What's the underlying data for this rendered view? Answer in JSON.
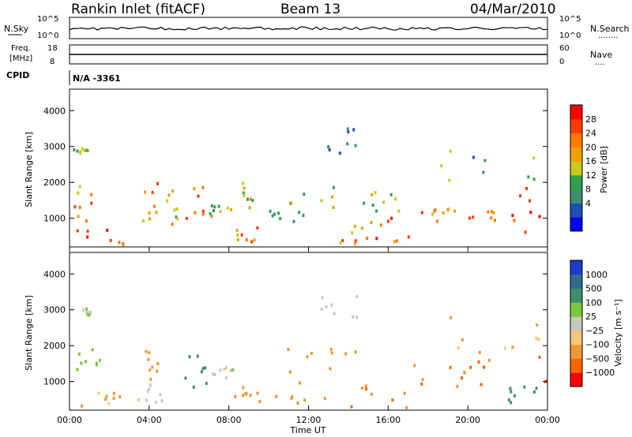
{
  "header": {
    "station": "Rankin Inlet (fitACF)",
    "beam": "Beam 13",
    "date": "04/Mar/2010"
  },
  "strip_panels": {
    "nsky": {
      "label": "N.Sky",
      "left_ticks": [
        "10^5",
        "10^0"
      ],
      "right_ticks": [
        "10^5",
        "10^0"
      ],
      "right_label": "N.Search",
      "right_dots": "........"
    },
    "freq": {
      "label_line1": "Freq.",
      "label_line2": "[MHz]",
      "left_ticks": [
        "18",
        "8"
      ],
      "right_ticks": [
        "60",
        "0"
      ],
      "right_label": "Nave",
      "right_dots": "...."
    },
    "cpid": {
      "label": "CPID",
      "value": "N/A -3361"
    }
  },
  "power_panel": {
    "ylabel": "Slant Range [km]",
    "yticks": [
      "4000",
      "3000",
      "2000",
      "1000"
    ],
    "colorbar_label": "Power [dB]",
    "colorbar_ticks": [
      "28",
      "24",
      "20",
      "16",
      "12",
      "8",
      "4"
    ],
    "colors": [
      "#0000ff",
      "#1e4fb4",
      "#3d8f6e",
      "#2ea24a",
      "#c8c81e",
      "#f0a000",
      "#ff7800",
      "#ff3c00",
      "#ff0000"
    ]
  },
  "velocity_panel": {
    "ylabel": "Slant Range [km]",
    "yticks": [
      "4000",
      "3000",
      "2000",
      "1000"
    ],
    "colorbar_label": "Velocity [m s⁻¹]",
    "colorbar_ticks": [
      "1000",
      "500",
      "100",
      "25",
      "−25",
      "−100",
      "−500",
      "−1000"
    ],
    "colors": [
      "#1e3cc8",
      "#2d6e8c",
      "#3d8f6e",
      "#78c83c",
      "#c8c8be",
      "#f0c878",
      "#f09632",
      "#ff6400",
      "#ff0000"
    ]
  },
  "time_axis": {
    "label": "Time UT",
    "ticks": [
      "00:00",
      "04:00",
      "08:00",
      "12:00",
      "16:00",
      "20:00",
      "00:00"
    ]
  },
  "chart_data": {
    "type": "heatmap",
    "x_unit": "hours UT",
    "xlim": [
      0,
      24
    ],
    "ylim": [
      200,
      4600
    ],
    "power_clusters": [
      {
        "t": [
          0.0,
          1.2
        ],
        "r": [
          900,
          1900
        ],
        "p": 18
      },
      {
        "t": [
          0.0,
          1.0
        ],
        "r": [
          2800,
          3050
        ],
        "p": 10
      },
      {
        "t": [
          0.2,
          3.0
        ],
        "r": [
          200,
          700
        ],
        "p": 24
      },
      {
        "t": [
          3.6,
          4.6
        ],
        "r": [
          900,
          2000
        ],
        "p": 20
      },
      {
        "t": [
          4.8,
          5.6
        ],
        "r": [
          800,
          1900
        ],
        "p": 18
      },
      {
        "t": [
          5.8,
          7.2
        ],
        "r": [
          900,
          1900
        ],
        "p": 22
      },
      {
        "t": [
          7.0,
          8.2
        ],
        "r": [
          1100,
          1350
        ],
        "p": 12
      },
      {
        "t": [
          7.8,
          9.4
        ],
        "r": [
          250,
          900
        ],
        "p": 20
      },
      {
        "t": [
          8.6,
          9.2
        ],
        "r": [
          1100,
          2100
        ],
        "p": 14
      },
      {
        "t": [
          9.8,
          12.0
        ],
        "r": [
          900,
          1200
        ],
        "p": 12
      },
      {
        "t": [
          11.0,
          14.8
        ],
        "r": [
          1300,
          1900
        ],
        "p": 14
      },
      {
        "t": [
          12.8,
          14.4
        ],
        "r": [
          2800,
          3500
        ],
        "p": 8
      },
      {
        "t": [
          13.5,
          15.0
        ],
        "r": [
          200,
          900
        ],
        "p": 20
      },
      {
        "t": [
          15.0,
          16.8
        ],
        "r": [
          1200,
          1800
        ],
        "p": 12
      },
      {
        "t": [
          14.8,
          17.4
        ],
        "r": [
          250,
          1000
        ],
        "p": 22
      },
      {
        "t": [
          17.5,
          19.0
        ],
        "r": [
          800,
          1300
        ],
        "p": 20
      },
      {
        "t": [
          19.0,
          22.0
        ],
        "r": [
          900,
          1400
        ],
        "p": 20
      },
      {
        "t": [
          22.0,
          24.0
        ],
        "r": [
          600,
          1900
        ],
        "p": 26
      },
      {
        "t": [
          18.0,
          23.6
        ],
        "r": [
          1600,
          2900
        ],
        "p": 10
      }
    ],
    "velocity_clusters": [
      {
        "t": [
          0.0,
          1.5
        ],
        "r": [
          1200,
          1900
        ],
        "v": 80
      },
      {
        "t": [
          0.0,
          1.0
        ],
        "r": [
          2800,
          3100
        ],
        "v": 0
      },
      {
        "t": [
          0.5,
          3.0
        ],
        "r": [
          300,
          700
        ],
        "v": -150
      },
      {
        "t": [
          3.6,
          4.4
        ],
        "r": [
          800,
          2000
        ],
        "v": -200
      },
      {
        "t": [
          3.4,
          4.6
        ],
        "r": [
          400,
          900
        ],
        "v": 0
      },
      {
        "t": [
          5.6,
          7.0
        ],
        "r": [
          800,
          1800
        ],
        "v": 300
      },
      {
        "t": [
          7.0,
          8.2
        ],
        "r": [
          1100,
          1400
        ],
        "v": 0
      },
      {
        "t": [
          8.2,
          9.6
        ],
        "r": [
          250,
          900
        ],
        "v": -300
      },
      {
        "t": [
          10.0,
          13.0
        ],
        "r": [
          300,
          1300
        ],
        "v": -250
      },
      {
        "t": [
          10.6,
          14.6
        ],
        "r": [
          1300,
          1900
        ],
        "v": -300
      },
      {
        "t": [
          12.6,
          14.4
        ],
        "r": [
          2700,
          3500
        ],
        "v": 0
      },
      {
        "t": [
          14.0,
          17.2
        ],
        "r": [
          250,
          1100
        ],
        "v": -400
      },
      {
        "t": [
          17.2,
          20.0
        ],
        "r": [
          800,
          1500
        ],
        "v": -500
      },
      {
        "t": [
          19.8,
          24.0
        ],
        "r": [
          800,
          1800
        ],
        "v": -600
      },
      {
        "t": [
          19.0,
          23.6
        ],
        "r": [
          1600,
          2800
        ],
        "v": -100
      },
      {
        "t": [
          22.0,
          23.8
        ],
        "r": [
          400,
          900
        ],
        "v": 150
      }
    ]
  }
}
